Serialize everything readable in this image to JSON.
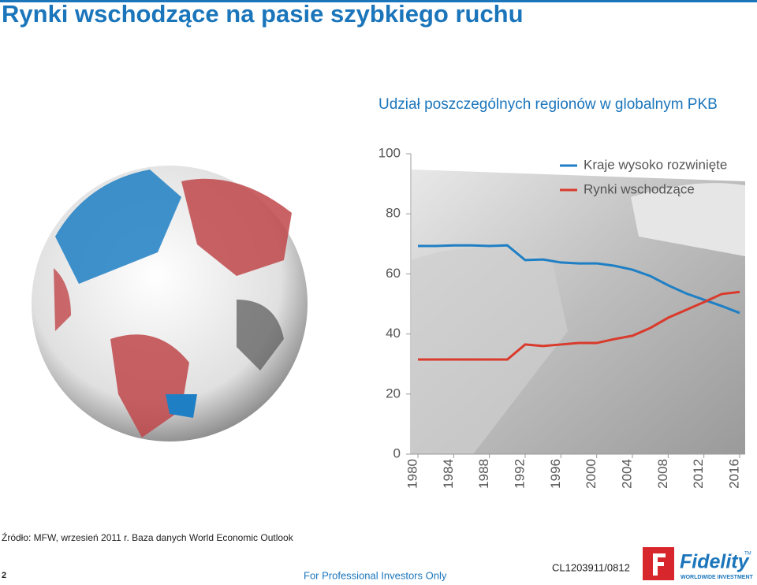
{
  "slide": {
    "title": "Rynki wschodzące na pasie szybkiego ruchu",
    "source": "Źródło: MFW, wrzesień 2011 r. Baza danych World Economic Outlook",
    "page_number": "2",
    "footer": "For Professional Investors Only",
    "code": "CL1203911/0812",
    "logo": "Fidelity",
    "logo_tagline": "WORLDWIDE INVESTMENT",
    "logo_mark": "TM"
  },
  "chart_data": {
    "type": "line",
    "title": "Udział poszczególnych regionów w globalnym PKB",
    "x": [
      1980,
      1982,
      1984,
      1986,
      1988,
      1990,
      1992,
      1994,
      1996,
      1998,
      2000,
      2002,
      2004,
      2006,
      2008,
      2010,
      2012,
      2014,
      2016
    ],
    "series": [
      {
        "name": "Kraje wysoko rozwinięte",
        "color": "#1f7fc4",
        "values": [
          69.3,
          69.3,
          69.5,
          69.5,
          69.3,
          69.5,
          64.6,
          64.8,
          63.8,
          63.5,
          63.5,
          62.7,
          61.4,
          59.3,
          56.2,
          53.5,
          51.4,
          49.3,
          47
        ]
      },
      {
        "name": "Rynki wschodzące",
        "color": "#d93a2b",
        "values": [
          31.5,
          31.5,
          31.5,
          31.5,
          31.5,
          31.5,
          36.5,
          36,
          36.5,
          37,
          37,
          38.3,
          39.4,
          42,
          45.4,
          48,
          50.6,
          53.3,
          54
        ]
      }
    ],
    "xlim": [
      1980,
      2016
    ],
    "xticks": [
      1980,
      1984,
      1988,
      1992,
      1996,
      2000,
      2004,
      2008,
      2012,
      2016
    ],
    "ylim": [
      0,
      100
    ],
    "yticks": [
      0,
      20,
      40,
      60,
      80,
      100
    ],
    "legend": "top-right"
  }
}
